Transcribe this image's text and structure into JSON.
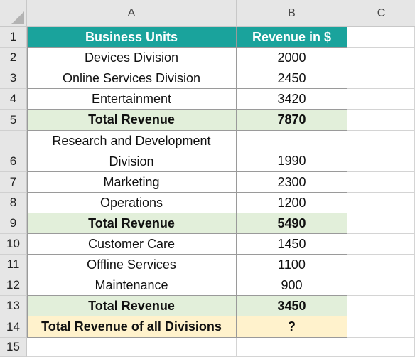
{
  "sheet": {
    "column_headers": [
      "A",
      "B",
      "C"
    ],
    "row_numbers": [
      "1",
      "2",
      "3",
      "4",
      "5",
      "6",
      "7",
      "8",
      "9",
      "10",
      "11",
      "12",
      "13",
      "14",
      "15"
    ],
    "header": {
      "business_units": "Business Units",
      "revenue": "Revenue in $"
    },
    "rows": [
      {
        "unit": "Devices Division",
        "revenue": "2000"
      },
      {
        "unit": "Online Services Division",
        "revenue": "2450"
      },
      {
        "unit": "Entertainment",
        "revenue": "3420"
      },
      {
        "unit": "Total Revenue",
        "revenue": "7870"
      },
      {
        "unit_line1": "Research and Development",
        "unit_line2": "Division",
        "revenue": "1990"
      },
      {
        "unit": "Marketing",
        "revenue": "2300"
      },
      {
        "unit": "Operations",
        "revenue": "1200"
      },
      {
        "unit": "Total Revenue",
        "revenue": "5490"
      },
      {
        "unit": "Customer Care",
        "revenue": "1450"
      },
      {
        "unit": "Offline Services",
        "revenue": "1100"
      },
      {
        "unit": "Maintenance",
        "revenue": "900"
      },
      {
        "unit": "Total Revenue",
        "revenue": "3450"
      },
      {
        "unit": "Total Revenue of all Divisions",
        "revenue": "?"
      }
    ],
    "colors": {
      "header_fill": "#1aa39c",
      "total_fill": "#e2efda",
      "grand_total_fill": "#fff2cc"
    }
  }
}
